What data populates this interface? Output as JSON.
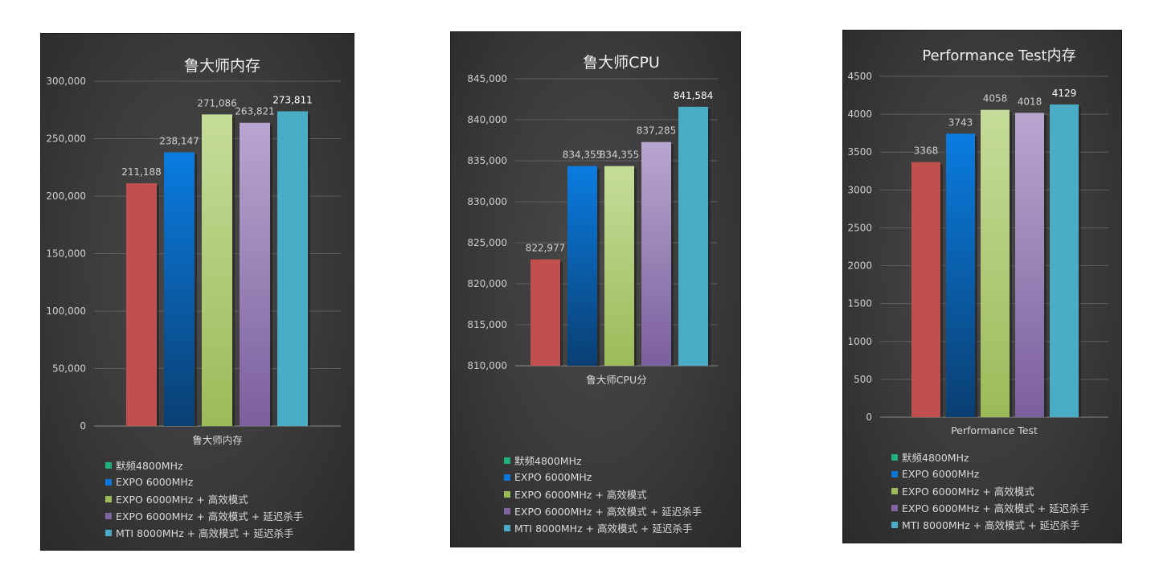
{
  "legend_items": [
    {
      "label": "默频4800MHz",
      "color": "#c0504d"
    },
    {
      "label": "EXPO 6000MHz",
      "color": "#0e74d8"
    },
    {
      "label": "EXPO 6000MHz + 高效模式",
      "color": "#9bbb59"
    },
    {
      "label": "EXPO 6000MHz + 高效模式 + 延迟杀手",
      "color": "#8064a2"
    },
    {
      "label": "MTI 8000MHz + 高效模式 + 延迟杀手",
      "color": "#4bacc6"
    }
  ],
  "chart_data": [
    {
      "type": "bar",
      "title": "鲁大师内存",
      "categories": [
        "鲁大师内存"
      ],
      "ylim": [
        0,
        300000
      ],
      "ytick_step": 50000,
      "ytick_labels": [
        "0",
        "50,000",
        "100,000",
        "150,000",
        "200,000",
        "250,000",
        "300,000"
      ],
      "grid": true,
      "legend_position": "bottom",
      "series": [
        {
          "name": "默频4800MHz",
          "values": [
            211188
          ],
          "label": "211,188"
        },
        {
          "name": "EXPO 6000MHz",
          "values": [
            238147
          ],
          "label": "238,147"
        },
        {
          "name": "EXPO 6000MHz + 高效模式",
          "values": [
            271086
          ],
          "label": "271,086"
        },
        {
          "name": "EXPO 6000MHz + 高效模式 + 延迟杀手",
          "values": [
            263821
          ],
          "label": "263,821"
        },
        {
          "name": "MTI 8000MHz + 高效模式 + 延迟杀手",
          "values": [
            273811
          ],
          "label": "273,811"
        }
      ]
    },
    {
      "type": "bar",
      "title": "鲁大师CPU",
      "categories": [
        "鲁大师CPU分"
      ],
      "ylim": [
        810000,
        845000
      ],
      "ytick_step": 5000,
      "ytick_labels": [
        "810,000",
        "815,000",
        "820,000",
        "825,000",
        "830,000",
        "835,000",
        "840,000",
        "845,000"
      ],
      "grid": true,
      "legend_position": "bottom",
      "series": [
        {
          "name": "默频4800MHz",
          "values": [
            822977
          ],
          "label": "822,977"
        },
        {
          "name": "EXPO 6000MHz",
          "values": [
            834355
          ],
          "label": "834,355"
        },
        {
          "name": "EXPO 6000MHz + 高效模式",
          "values": [
            834355
          ],
          "label": "834,355"
        },
        {
          "name": "EXPO 6000MHz + 高效模式 + 延迟杀手",
          "values": [
            837285
          ],
          "label": "837,285"
        },
        {
          "name": "MTI 8000MHz + 高效模式 + 延迟杀手",
          "values": [
            841584
          ],
          "label": "841,584"
        }
      ]
    },
    {
      "type": "bar",
      "title": "Performance Test内存",
      "categories": [
        "Performance Test"
      ],
      "ylim": [
        0,
        4500
      ],
      "ytick_step": 500,
      "ytick_labels": [
        "0",
        "500",
        "1000",
        "1500",
        "2000",
        "2500",
        "3000",
        "3500",
        "4000",
        "4500"
      ],
      "grid": true,
      "legend_position": "bottom",
      "series": [
        {
          "name": "默频4800MHz",
          "values": [
            3368
          ],
          "label": "3368"
        },
        {
          "name": "EXPO 6000MHz",
          "values": [
            3743
          ],
          "label": "3743"
        },
        {
          "name": "EXPO 6000MHz + 高效模式",
          "values": [
            4058
          ],
          "label": "4058"
        },
        {
          "name": "EXPO 6000MHz + 高效模式 + 延迟杀手",
          "values": [
            4018
          ],
          "label": "4018"
        },
        {
          "name": "MTI 8000MHz + 高效模式 + 延迟杀手",
          "values": [
            4129
          ],
          "label": "4129"
        }
      ]
    }
  ]
}
